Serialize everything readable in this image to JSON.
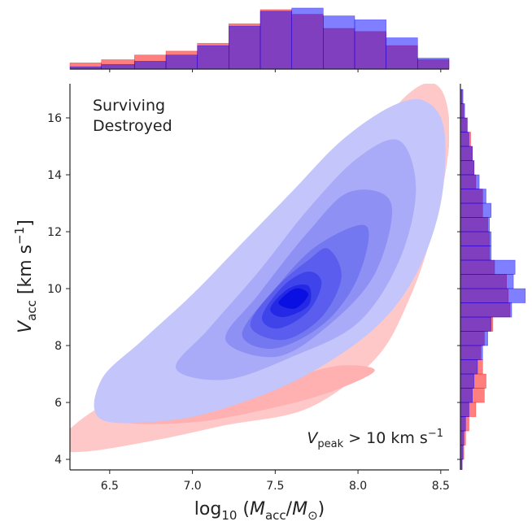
{
  "chart_data": [
    {
      "type": "contour",
      "xlabel": [
        "log",
        "10",
        " (",
        "M",
        "acc",
        "/",
        "M",
        "⊙",
        ")"
      ],
      "ylabel": [
        "V",
        "acc",
        " [km s",
        "−1",
        "]"
      ],
      "annotation": [
        "V",
        "peak",
        " > 10 km s",
        "−1"
      ],
      "xlim": [
        6.26,
        8.55
      ],
      "ylim": [
        3.63,
        17.2
      ],
      "xticks": [
        6.5,
        {
          "value": 7,
          "label": "7.0"
        },
        7.5,
        {
          "value": 8,
          "label": "8.0"
        },
        8.5
      ],
      "yticks": [
        4,
        6,
        8,
        10,
        12,
        14,
        16
      ],
      "legend": "upper left",
      "series": [
        {
          "name": "Surviving",
          "color": "#0000ff",
          "levels": [
            {
              "color": "#c3c5fb",
              "x": [
                6.45,
                6.45,
                6.7,
                7.0,
                7.3,
                7.6,
                7.9,
                8.2,
                8.4,
                8.52,
                8.5,
                8.35,
                8.1,
                7.7,
                7.3,
                6.9
              ],
              "y": [
                5.4,
                6.8,
                8.2,
                9.8,
                11.6,
                13.4,
                15.2,
                16.4,
                16.6,
                15.6,
                13,
                10.5,
                8.6,
                7.0,
                6.0,
                5.4
              ]
            },
            {
              "color": "#a9abf8",
              "x": [
                6.9,
                7.1,
                7.4,
                7.7,
                8.0,
                8.25,
                8.35,
                8.25,
                8.0,
                7.6,
                7.2
              ],
              "y": [
                7.2,
                8.6,
                10.6,
                12.8,
                14.6,
                15.2,
                13.5,
                11,
                8.8,
                7.6,
                6.8
              ]
            },
            {
              "color": "#8e90f4",
              "x": [
                7.2,
                7.4,
                7.7,
                7.95,
                8.2,
                8.1,
                7.8,
                7.5
              ],
              "y": [
                8.2,
                9.8,
                12,
                13.4,
                13,
                10.5,
                8.6,
                7.6
              ]
            },
            {
              "color": "#7377f0",
              "x": [
                7.3,
                7.5,
                7.75,
                8.05,
                8.0,
                7.8,
                7.5
              ],
              "y": [
                8.4,
                10,
                11.5,
                12.2,
                10.4,
                8.8,
                7.9
              ]
            },
            {
              "color": "#5a5ded",
              "x": [
                7.35,
                7.5,
                7.7,
                7.82,
                7.9,
                7.78,
                7.55
              ],
              "y": [
                8.7,
                10,
                11,
                11.4,
                10.4,
                9,
                8.2
              ]
            },
            {
              "color": "#3f43ea",
              "x": [
                7.42,
                7.55,
                7.7,
                7.78,
                7.7,
                7.52
              ],
              "y": [
                9,
                10.1,
                10.6,
                10.2,
                9.2,
                8.6
              ]
            },
            {
              "color": "#2529e6",
              "x": [
                7.47,
                7.58,
                7.7,
                7.7,
                7.55
              ],
              "y": [
                9.3,
                10,
                10.1,
                9.4,
                9.0
              ]
            },
            {
              "color": "#0b10e2",
              "x": [
                7.52,
                7.62,
                7.7,
                7.62
              ],
              "y": [
                9.5,
                10.0,
                9.8,
                9.3
              ]
            }
          ]
        },
        {
          "name": "Destroyed",
          "color": "#ff0000",
          "levels": [
            {
              "color": "#ffc8c8",
              "x": [
                6.18,
                6.35,
                6.6,
                6.9,
                7.2,
                7.5,
                7.8,
                8.0,
                8.2,
                8.4,
                8.52,
                8.55,
                8.45,
                8.3,
                8.1,
                7.7,
                7.2,
                6.8,
                6.4,
                6.2
              ],
              "y": [
                4.6,
                5.5,
                6.4,
                7.6,
                9.0,
                10.8,
                12.6,
                14.2,
                16.2,
                17.2,
                16.8,
                15,
                12,
                9.5,
                7.5,
                5.8,
                5.2,
                4.7,
                4.3,
                4.3
              ]
            },
            {
              "color": "#ffb0b0",
              "x": [
                6.6,
                6.75,
                7.0,
                7.3,
                7.6,
                7.9,
                8.1,
                7.8,
                7.4,
                7.0
              ],
              "y": [
                5.3,
                5.9,
                6.2,
                6.5,
                6.9,
                7.3,
                7.1,
                6.3,
                5.7,
                5.3
              ]
            }
          ]
        }
      ]
    },
    {
      "type": "histogram",
      "orientation": "vertical",
      "opacity": 0.5,
      "xlim": [
        6.26,
        8.55
      ],
      "ylim": [
        0,
        80
      ],
      "xticks": [
        6.5,
        7,
        7.5,
        8,
        8.5
      ],
      "bins": [
        6.26,
        6.45,
        6.65,
        6.84,
        7.03,
        7.22,
        7.41,
        7.6,
        7.79,
        7.98,
        8.17,
        8.36,
        8.55
      ],
      "series": [
        {
          "color": "#ff0000",
          "values": [
            8,
            12,
            18,
            23,
            33,
            58,
            76,
            70,
            52,
            48,
            30,
            12
          ]
        },
        {
          "color": "#0000ff",
          "values": [
            3,
            6,
            10,
            18,
            30,
            55,
            74,
            78,
            68,
            63,
            40,
            14
          ]
        }
      ]
    },
    {
      "type": "histogram",
      "orientation": "horizontal",
      "opacity": 0.5,
      "ylim": [
        3.63,
        17.2
      ],
      "xlim": [
        0,
        80
      ],
      "yticks": [
        4,
        6,
        8,
        10,
        12,
        14,
        16
      ],
      "bins": [
        3.5,
        4,
        4.5,
        5,
        5.5,
        6,
        6.5,
        7,
        7.5,
        8,
        8.5,
        9,
        9.5,
        10,
        10.5,
        11,
        11.5,
        12,
        12.5,
        13,
        13.5,
        14,
        14.5,
        15,
        15.5,
        16,
        16.5,
        17
      ],
      "series": [
        {
          "color": "#ff0000",
          "values": [
            2,
            4,
            6,
            10,
            18,
            28,
            30,
            26,
            24,
            28,
            38,
            58,
            56,
            54,
            40,
            34,
            34,
            32,
            26,
            26,
            18,
            16,
            14,
            12,
            8,
            4,
            2
          ]
        },
        {
          "color": "#0000ff",
          "values": [
            2,
            3,
            4,
            6,
            10,
            14,
            16,
            20,
            26,
            32,
            36,
            60,
            76,
            62,
            64,
            36,
            36,
            34,
            36,
            30,
            22,
            16,
            14,
            10,
            8,
            5,
            3
          ]
        }
      ]
    }
  ]
}
